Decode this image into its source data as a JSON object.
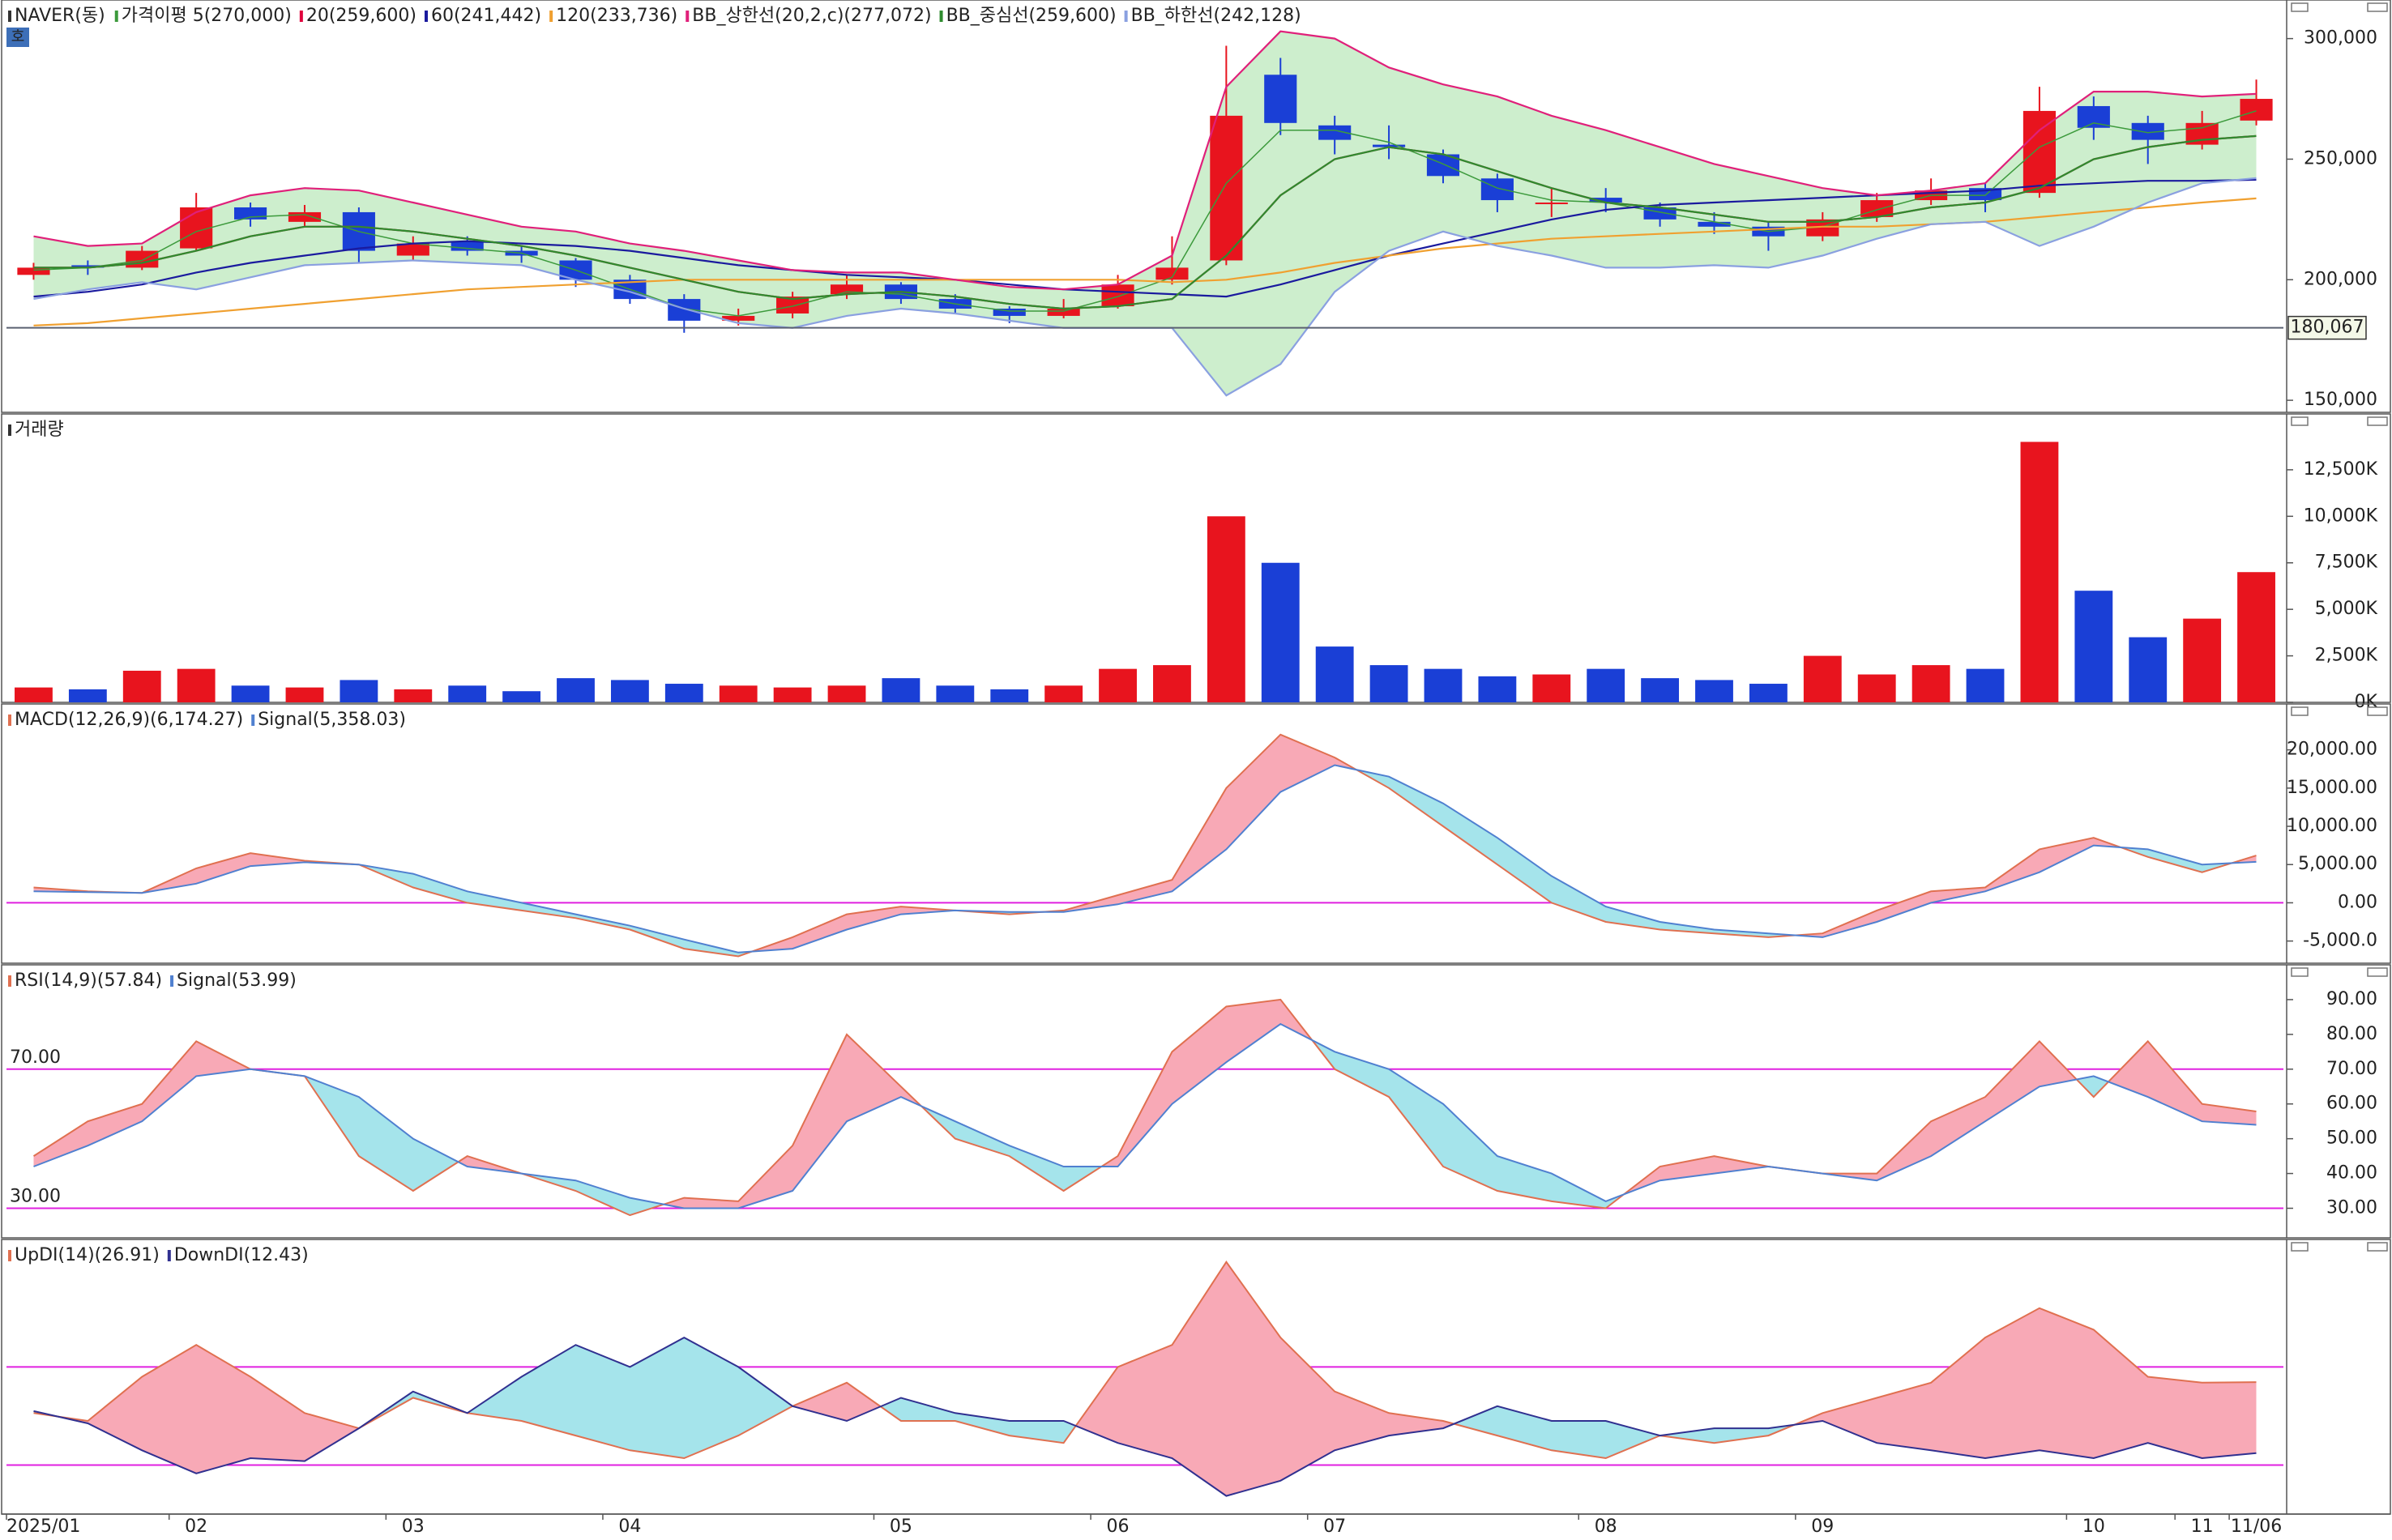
{
  "chart_data": [
    {
      "type": "candlestick",
      "title": "NAVER(동)",
      "badge": "호",
      "categories": [
        "2025/01",
        null,
        null,
        "02",
        null,
        null,
        null,
        "03",
        null,
        null,
        null,
        "04",
        null,
        null,
        null,
        null,
        "05",
        null,
        null,
        null,
        "06",
        null,
        null,
        null,
        "07",
        null,
        null,
        null,
        null,
        "08",
        null,
        null,
        null,
        "09",
        null,
        null,
        null,
        null,
        "10",
        null,
        "11",
        "11/06"
      ],
      "open": [
        202000,
        206000,
        205000,
        213000,
        230000,
        224000,
        228000,
        210000,
        216000,
        212000,
        208000,
        200000,
        192000,
        183000,
        186000,
        194000,
        198000,
        192000,
        188000,
        185000,
        189000,
        200000,
        208000,
        285000,
        264000,
        256000,
        252000,
        242000,
        232000,
        234000,
        230000,
        224000,
        222000,
        218000,
        226000,
        233000,
        238000,
        236000,
        272000,
        265000,
        256000,
        266000
      ],
      "high": [
        207000,
        208000,
        214000,
        236000,
        232000,
        231000,
        230000,
        218000,
        218000,
        214000,
        209000,
        202000,
        194000,
        188000,
        195000,
        202000,
        199000,
        194000,
        189000,
        192000,
        202000,
        218000,
        297000,
        292000,
        268000,
        264000,
        254000,
        244000,
        238000,
        238000,
        232000,
        228000,
        224000,
        228000,
        236000,
        242000,
        240000,
        280000,
        276000,
        268000,
        270000,
        283000
      ],
      "low": [
        200000,
        202000,
        204000,
        212000,
        222000,
        222000,
        207000,
        208000,
        210000,
        207000,
        197000,
        190000,
        178000,
        181000,
        184000,
        192000,
        190000,
        186000,
        182000,
        184000,
        188000,
        198000,
        206000,
        260000,
        252000,
        250000,
        240000,
        228000,
        226000,
        228000,
        222000,
        219000,
        212000,
        216000,
        224000,
        231000,
        228000,
        234000,
        258000,
        248000,
        254000,
        264000
      ],
      "close": [
        205000,
        205000,
        212000,
        230000,
        225000,
        228000,
        212000,
        215000,
        212000,
        210000,
        200000,
        192000,
        183000,
        185000,
        193000,
        198000,
        192000,
        188000,
        185000,
        188000,
        198000,
        205000,
        268000,
        265000,
        258000,
        255000,
        243000,
        233000,
        232000,
        232000,
        225000,
        222000,
        218000,
        225000,
        233000,
        237000,
        233000,
        270000,
        263000,
        258000,
        265000,
        275000
      ],
      "up_color": "#e8141e",
      "down_color": "#1a3fd6",
      "band_fill": "#cdeecd",
      "series": [
        {
          "name": "가격이평 5(270,000)",
          "color": "#3c9a3c",
          "values": [
            204000,
            205000,
            208000,
            220000,
            226000,
            227000,
            220000,
            215000,
            213000,
            211000,
            204000,
            196000,
            188000,
            185000,
            189000,
            195000,
            194000,
            190000,
            187000,
            187000,
            193000,
            201000,
            240000,
            262000,
            262000,
            257000,
            248000,
            238000,
            233000,
            232000,
            228000,
            224000,
            220000,
            222000,
            229000,
            235000,
            235000,
            255000,
            265000,
            261000,
            263000,
            270000
          ]
        },
        {
          "name": "20(259,600)",
          "color": "#e0003c",
          "values": [
            205000,
            205000,
            207000,
            212000,
            218000,
            222000,
            222000,
            220000,
            217000,
            214000,
            210000,
            205000,
            200000,
            195000,
            192000,
            194000,
            195000,
            193000,
            190000,
            188000,
            189000,
            192000,
            210000,
            235000,
            250000,
            255000,
            252000,
            245000,
            238000,
            232000,
            230000,
            227000,
            224000,
            224000,
            226000,
            230000,
            232000,
            238000,
            250000,
            255000,
            258000,
            259600
          ]
        },
        {
          "name": "60(241,442)",
          "color": "#1a1a9e",
          "values": [
            193000,
            195000,
            198000,
            203000,
            207000,
            210000,
            213000,
            215000,
            216000,
            215000,
            214000,
            212000,
            209000,
            206000,
            204000,
            202000,
            201000,
            200000,
            198000,
            196000,
            195000,
            194000,
            193000,
            198000,
            204000,
            210000,
            215000,
            220000,
            225000,
            229000,
            231000,
            232000,
            233000,
            234000,
            235000,
            236000,
            237000,
            239000,
            240000,
            241000,
            241000,
            241442
          ]
        },
        {
          "name": "120(233,736)",
          "color": "#f0a030",
          "values": [
            181000,
            182000,
            184000,
            186000,
            188000,
            190000,
            192000,
            194000,
            196000,
            197000,
            198000,
            199000,
            200000,
            200000,
            200000,
            200000,
            200000,
            200000,
            200000,
            200000,
            200000,
            199000,
            200000,
            203000,
            207000,
            210000,
            213000,
            215000,
            217000,
            218000,
            219000,
            220000,
            221000,
            222000,
            222000,
            223000,
            224000,
            226000,
            228000,
            230000,
            232000,
            233736
          ]
        },
        {
          "name": "BB_상한선(20,2,c)(277,072)",
          "color": "#e0207a",
          "values": [
            218000,
            214000,
            215000,
            228000,
            235000,
            238000,
            237000,
            232000,
            227000,
            222000,
            220000,
            215000,
            212000,
            208000,
            204000,
            203000,
            203000,
            200000,
            197000,
            196000,
            198000,
            210000,
            280000,
            303000,
            300000,
            288000,
            281000,
            276000,
            268000,
            262000,
            255000,
            248000,
            243000,
            238000,
            235000,
            237000,
            240000,
            262000,
            278000,
            278000,
            276000,
            277072
          ]
        },
        {
          "name": "BB_중심선(259,600)",
          "color": "#2e8b2e",
          "values": [
            205000,
            205000,
            207000,
            212000,
            218000,
            222000,
            222000,
            220000,
            217000,
            214000,
            210000,
            205000,
            200000,
            195000,
            192000,
            194000,
            195000,
            193000,
            190000,
            188000,
            189000,
            192000,
            210000,
            235000,
            250000,
            255000,
            252000,
            245000,
            238000,
            232000,
            230000,
            227000,
            224000,
            224000,
            226000,
            230000,
            232000,
            238000,
            250000,
            255000,
            258000,
            259600
          ]
        },
        {
          "name": "BB_하한선(242,128)",
          "color": "#8aa0e0",
          "values": [
            192000,
            196000,
            199000,
            196000,
            201000,
            206000,
            207000,
            208000,
            207000,
            206000,
            200000,
            195000,
            188000,
            182000,
            180000,
            185000,
            188000,
            186000,
            183000,
            180000,
            180000,
            180000,
            152000,
            165000,
            195000,
            212000,
            220000,
            214000,
            210000,
            205000,
            205000,
            206000,
            205000,
            210000,
            217000,
            223000,
            224000,
            214000,
            222000,
            232000,
            240000,
            242128
          ]
        }
      ],
      "price_line": {
        "value": 180067,
        "label": "180,067"
      },
      "ylim": [
        145000,
        316000
      ],
      "yticks": [
        {
          "value": 150000,
          "label": "150,000"
        },
        {
          "value": 200000,
          "label": "200,000"
        },
        {
          "value": 250000,
          "label": "250,000"
        },
        {
          "value": 300000,
          "label": "300,000"
        }
      ]
    },
    {
      "type": "bar",
      "title": "거래량",
      "values": [
        800,
        700,
        1700,
        1800,
        900,
        800,
        1200,
        700,
        900,
        600,
        1300,
        1200,
        1000,
        900,
        800,
        900,
        1300,
        900,
        700,
        900,
        1800,
        2000,
        10000,
        7500,
        3000,
        2000,
        1800,
        1400,
        1500,
        1800,
        1300,
        1200,
        1000,
        2500,
        1500,
        2000,
        1800,
        14000,
        6000,
        3500,
        4500,
        7000
      ],
      "ylim": [
        0,
        15500
      ],
      "yticks": [
        {
          "value": 0,
          "label": "0K"
        },
        {
          "value": 2500,
          "label": "2,500K"
        },
        {
          "value": 5000,
          "label": "5,000K"
        },
        {
          "value": 7500,
          "label": "7,500K"
        },
        {
          "value": 10000,
          "label": "10,000K"
        },
        {
          "value": 12500,
          "label": "12,500K"
        }
      ]
    },
    {
      "type": "line",
      "fill_between": {
        "above": "#f8a9b6",
        "below": "#a5e4eb"
      },
      "ref_color": "#e020e0",
      "series": [
        {
          "name": "MACD(12,26,9)(6,174.27)",
          "color": "#e07050",
          "values": [
            2000,
            1500,
            1300,
            4500,
            6500,
            5500,
            5000,
            2000,
            0,
            -1000,
            -2000,
            -3500,
            -6000,
            -7000,
            -4500,
            -1500,
            -500,
            -1000,
            -1500,
            -1000,
            1000,
            3000,
            15000,
            22000,
            19000,
            15000,
            10000,
            5000,
            0,
            -2500,
            -3500,
            -4000,
            -4500,
            -4000,
            -1000,
            1500,
            2000,
            7000,
            8500,
            6000,
            4000,
            6174.27
          ]
        },
        {
          "name": "Signal(5,358.03)",
          "color": "#5080d0",
          "values": [
            1500,
            1400,
            1300,
            2500,
            4800,
            5300,
            5000,
            3800,
            1500,
            0,
            -1500,
            -3000,
            -4800,
            -6500,
            -6000,
            -3500,
            -1500,
            -1000,
            -1200,
            -1200,
            -200,
            1500,
            7000,
            14500,
            18000,
            16500,
            13000,
            8500,
            3500,
            -500,
            -2500,
            -3500,
            -4000,
            -4500,
            -2500,
            0,
            1500,
            4000,
            7500,
            7000,
            5000,
            5358.03
          ]
        }
      ],
      "ref_lines": [
        0
      ],
      "ylim": [
        -7900,
        26000
      ],
      "yticks": [
        {
          "value": -5000,
          "label": "-5,000.0"
        },
        {
          "value": 0,
          "label": "0.00"
        },
        {
          "value": 5000,
          "label": "5,000.00"
        },
        {
          "value": 10000,
          "label": "10,000.00"
        },
        {
          "value": 15000,
          "label": "15,000.00"
        },
        {
          "value": 20000,
          "label": "20,000.00"
        }
      ]
    },
    {
      "type": "line",
      "fill_between": {
        "above": "#f8a9b6",
        "below": "#a5e4eb"
      },
      "ref_color": "#e020e0",
      "series": [
        {
          "name": "RSI(14,9)(57.84)",
          "color": "#e07050",
          "values": [
            45,
            55,
            60,
            78,
            70,
            68,
            45,
            35,
            45,
            40,
            35,
            28,
            33,
            32,
            48,
            80,
            65,
            50,
            45,
            35,
            45,
            75,
            88,
            90,
            70,
            62,
            42,
            35,
            32,
            30,
            42,
            45,
            42,
            40,
            40,
            55,
            62,
            78,
            62,
            78,
            60,
            57.84
          ]
        },
        {
          "name": "Signal(53.99)",
          "color": "#5080d0",
          "values": [
            42,
            48,
            55,
            68,
            70,
            68,
            62,
            50,
            42,
            40,
            38,
            33,
            30,
            30,
            35,
            55,
            62,
            55,
            48,
            42,
            42,
            60,
            72,
            83,
            75,
            70,
            60,
            45,
            40,
            32,
            38,
            40,
            42,
            40,
            38,
            45,
            55,
            65,
            68,
            62,
            55,
            53.99
          ]
        }
      ],
      "ref_lines": [
        {
          "value": 70,
          "label": "70.00"
        },
        {
          "value": 30,
          "label": "30.00"
        }
      ],
      "ylim": [
        21.5,
        100
      ],
      "yticks": [
        {
          "value": 30,
          "label": "30.00"
        },
        {
          "value": 40,
          "label": "40.00"
        },
        {
          "value": 50,
          "label": "50.00"
        },
        {
          "value": 60,
          "label": "60.00"
        },
        {
          "value": 70,
          "label": "70.00"
        },
        {
          "value": 80,
          "label": "80.00"
        },
        {
          "value": 90,
          "label": "90.00"
        }
      ]
    },
    {
      "type": "line",
      "fill_between": {
        "above": "#f8a9b6",
        "below": "#a5e4eb"
      },
      "ref_color": "#e020e0",
      "series": [
        {
          "name": "UpDI(14)(26.91)",
          "color": "#e07050",
          "values": [
            20.6,
            19,
            28,
            34.5,
            28,
            20.6,
            17.5,
            23.7,
            20.6,
            19,
            16,
            13,
            11.4,
            16,
            22,
            26.8,
            19,
            19,
            16,
            14.5,
            30,
            34.5,
            51.4,
            36,
            25,
            20.6,
            19,
            16,
            13,
            11.4,
            16,
            14.5,
            16,
            20.6,
            23.7,
            26.8,
            36,
            42,
            37.6,
            28,
            26.8,
            26.91
          ]
        },
        {
          "name": "DownDI(12.43)",
          "color": "#303090",
          "values": [
            21,
            18.5,
            13,
            8.3,
            11.4,
            10.8,
            17.5,
            25,
            20.6,
            28,
            34.5,
            30,
            36,
            30,
            22,
            19,
            23.7,
            20.6,
            19,
            19,
            14.5,
            11.4,
            3.7,
            6.8,
            13,
            16,
            17.5,
            22,
            19,
            19,
            16,
            17.5,
            17.5,
            19,
            14.5,
            13,
            11.4,
            13,
            11.4,
            14.5,
            11.4,
            12.43
          ]
        }
      ],
      "ref_lines": [
        30,
        10
      ],
      "ylim": [
        0,
        56
      ]
    }
  ]
}
